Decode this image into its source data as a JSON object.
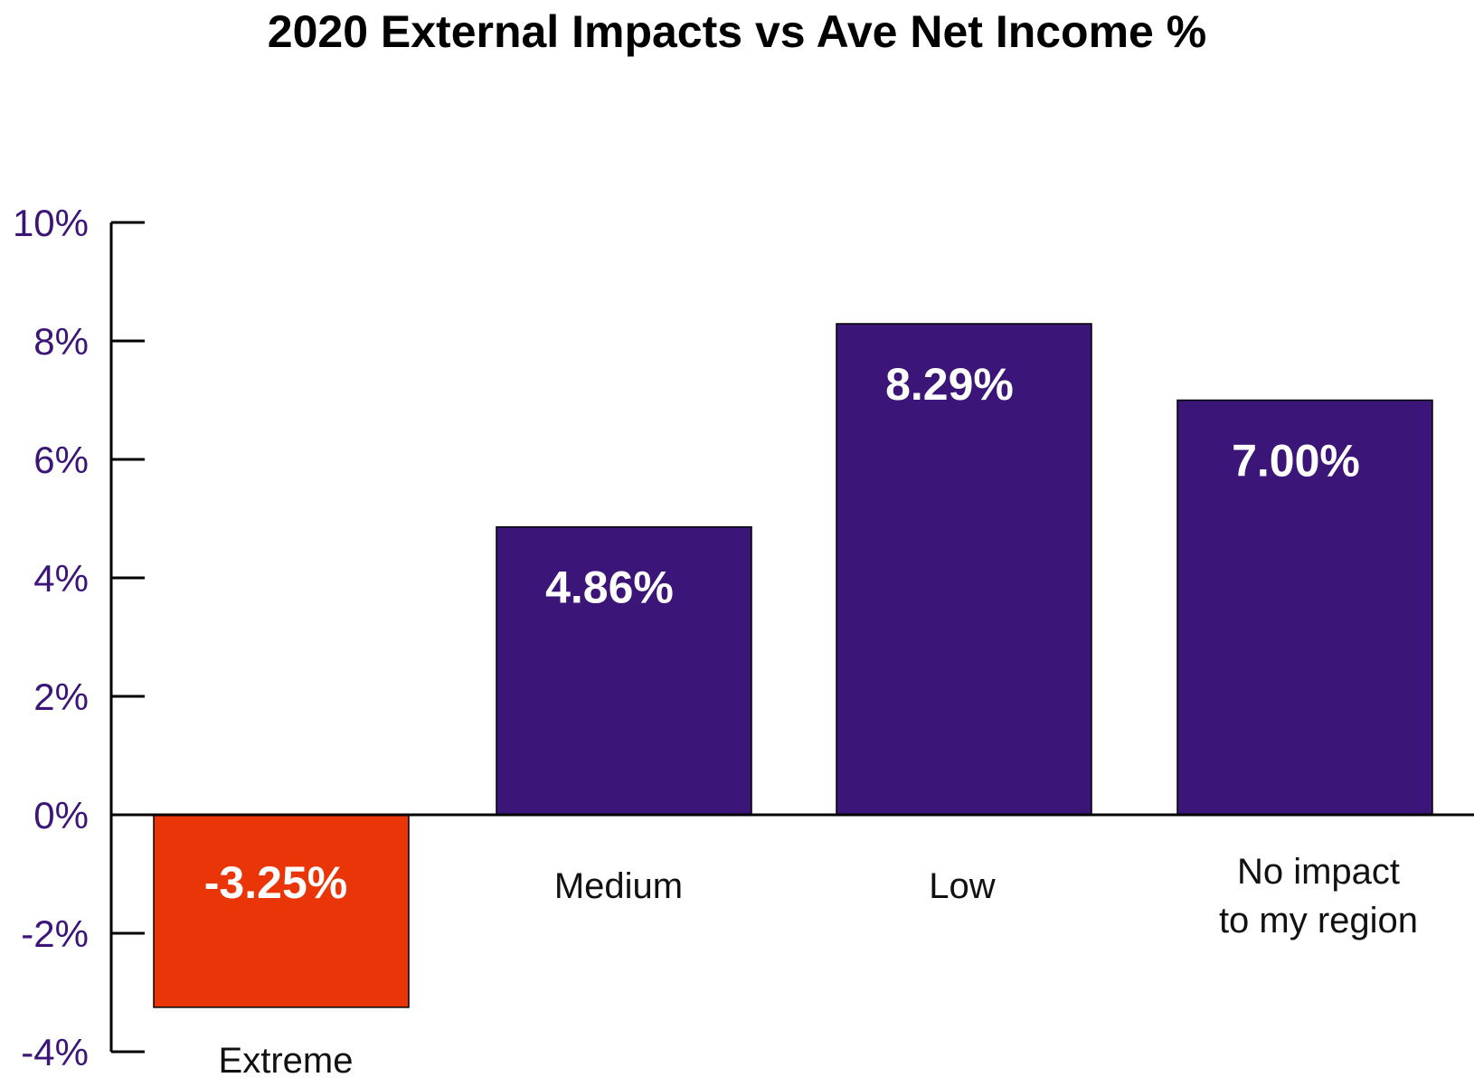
{
  "chart_data": {
    "type": "bar",
    "title": "2020 External Impacts vs Ave Net Income %",
    "categories": [
      "Extreme",
      "Medium",
      "Low",
      "No impact to my region"
    ],
    "category_lines": [
      [
        "Extreme"
      ],
      [
        "Medium"
      ],
      [
        "Low"
      ],
      [
        "No impact",
        "to my region"
      ]
    ],
    "values": [
      -3.25,
      4.86,
      8.29,
      7.0
    ],
    "data_labels": [
      "-3.25%",
      "4.86%",
      "8.29%",
      "7.00%"
    ],
    "bar_colors": [
      "#ea3508",
      "#3c1578",
      "#3c1578",
      "#3c1578"
    ],
    "ylim": [
      -4,
      10
    ],
    "yticks": [
      10,
      8,
      6,
      4,
      2,
      0,
      -2,
      -4
    ],
    "ytick_labels": [
      "10%",
      "8%",
      "6%",
      "4%",
      "2%",
      "0%",
      "-2%",
      "-4%"
    ],
    "tick_label_color": "#3c1578",
    "axis_color": "#000000",
    "grid": false,
    "legend": "none",
    "xlabel": "",
    "ylabel": ""
  }
}
